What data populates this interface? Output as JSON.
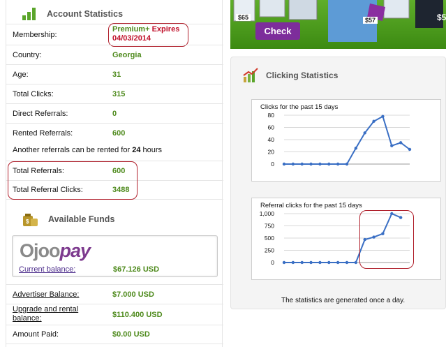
{
  "account": {
    "title": "Account Statistics",
    "rows": [
      {
        "label": "Membership:",
        "value": "Premium+",
        "extra": "Expires",
        "date": "04/03/2014"
      },
      {
        "label": "Country:",
        "value": "Georgia"
      },
      {
        "label": "Age:",
        "value": "31"
      },
      {
        "label": "Total Clicks:",
        "value": "315"
      },
      {
        "label": "Direct Referrals:",
        "value": "0"
      },
      {
        "label": "Rented Referrals:",
        "value": "600"
      },
      {
        "label": "Total Referrals:",
        "value": "600"
      },
      {
        "label": "Total Referral Clicks:",
        "value": "3488"
      }
    ],
    "note_prefix": "Another referrals can be rented for",
    "note_hours": "24",
    "note_suffix": "hours"
  },
  "funds": {
    "title": "Available Funds",
    "logo_a": "Ojoo",
    "logo_b": "pay",
    "current_label": "Current balance:",
    "current_value": "$67.126 USD",
    "advertiser_label": "Advertiser Balance:",
    "advertiser_value": "$7.000 USD",
    "upgrade_label_1": "Upgrade and rental",
    "upgrade_label_2": "balance:",
    "upgrade_value": "$110.400 USD",
    "paid_label": "Amount Paid:",
    "paid_value": "$0.00 USD"
  },
  "promo": {
    "check_label": "Check",
    "price_1": "$65",
    "price_2": "$57",
    "price_3": "$5"
  },
  "clicking": {
    "title": "Clicking Statistics",
    "footer": "The statistics are generated once a day."
  },
  "colors": {
    "value_green": "#4e8a1c",
    "accent_purple": "#7d2d9b",
    "highlight_red": "#b0202c",
    "line_blue": "#3a6fc4"
  },
  "chart_data": [
    {
      "type": "line",
      "title": "Clicks for the past 15 days",
      "x": [
        1,
        2,
        3,
        4,
        5,
        6,
        7,
        8,
        9,
        10,
        11,
        12,
        13,
        14,
        15
      ],
      "values": [
        0,
        0,
        0,
        0,
        0,
        0,
        0,
        0,
        26,
        51,
        70,
        78,
        30,
        35,
        24
      ],
      "ylim": [
        0,
        80
      ],
      "yticks": [
        "0",
        "20",
        "40",
        "60",
        "80"
      ],
      "grid": true
    },
    {
      "type": "line",
      "title": "Referral clicks for the past 15 days",
      "x": [
        1,
        2,
        3,
        4,
        5,
        6,
        7,
        8,
        9,
        10,
        11,
        12,
        13,
        14,
        15
      ],
      "values": [
        0,
        0,
        0,
        0,
        0,
        0,
        0,
        0,
        0,
        470,
        520,
        590,
        1000,
        920,
        null
      ],
      "ylim": [
        0,
        1000
      ],
      "yticks": [
        "0",
        "250",
        "500",
        "750",
        "1,000"
      ],
      "grid": true
    }
  ]
}
